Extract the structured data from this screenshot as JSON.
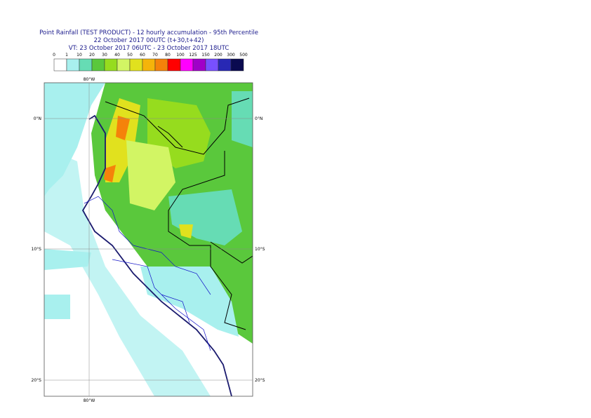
{
  "header": {
    "title": "Point Rainfall (TEST PRODUCT) - 12 hourly accumulation - 95th Percentile",
    "base_time": "22 October 2017 00UTC (t+30,t+42)",
    "valid_time": "VT: 23 October 2017 06UTC - 23 October 2017 18UTC"
  },
  "legend": {
    "thresholds": [
      "0",
      "1",
      "10",
      "20",
      "30",
      "40",
      "50",
      "60",
      "70",
      "80",
      "100",
      "125",
      "150",
      "200",
      "300",
      "500"
    ],
    "colors": [
      "#ffffff",
      "#a8f0ee",
      "#66dcb4",
      "#5ac83c",
      "#96dc1e",
      "#d2f564",
      "#e1e11e",
      "#f5b40a",
      "#f5820a",
      "#ff0000",
      "#ff00ff",
      "#a000c8",
      "#7850ff",
      "#2828b4",
      "#0a0a50"
    ]
  },
  "map": {
    "lon_labels": [
      "80°W"
    ],
    "lat_labels": [
      "0°N",
      "10°S",
      "20°S"
    ]
  }
}
